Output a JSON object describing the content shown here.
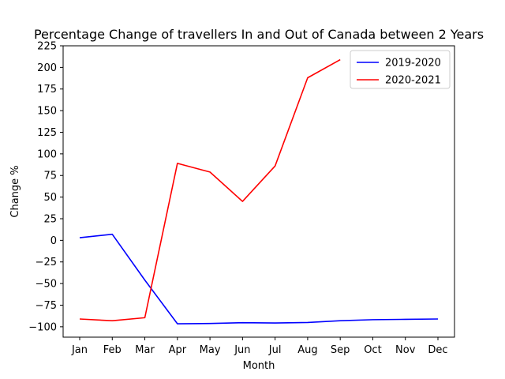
{
  "chart_data": {
    "type": "line",
    "title": "Percentage Change of travellers In and Out of Canada between 2 Years",
    "xlabel": "Month",
    "ylabel": "Change %",
    "categories": [
      "Jan",
      "Feb",
      "Mar",
      "Apr",
      "May",
      "Jun",
      "Jul",
      "Aug",
      "Sep",
      "Oct",
      "Nov",
      "Dec"
    ],
    "ylim": [
      -112,
      225
    ],
    "yticks": [
      -100,
      -75,
      -50,
      -25,
      0,
      25,
      50,
      75,
      100,
      125,
      150,
      175,
      200,
      225
    ],
    "grid": false,
    "legend_position": "top-right",
    "series": [
      {
        "name": "2019-2020",
        "color": "#0000ff",
        "values": [
          3,
          7,
          -46,
          -96.5,
          -96.2,
          -95.3,
          -95.6,
          -95,
          -93,
          -91.8,
          -91.4,
          -91
        ]
      },
      {
        "name": "2020-2021",
        "color": "#ff0000",
        "values": [
          -91,
          -93,
          -89.5,
          89,
          79,
          45,
          86,
          188,
          209,
          null,
          null,
          null
        ]
      }
    ]
  }
}
